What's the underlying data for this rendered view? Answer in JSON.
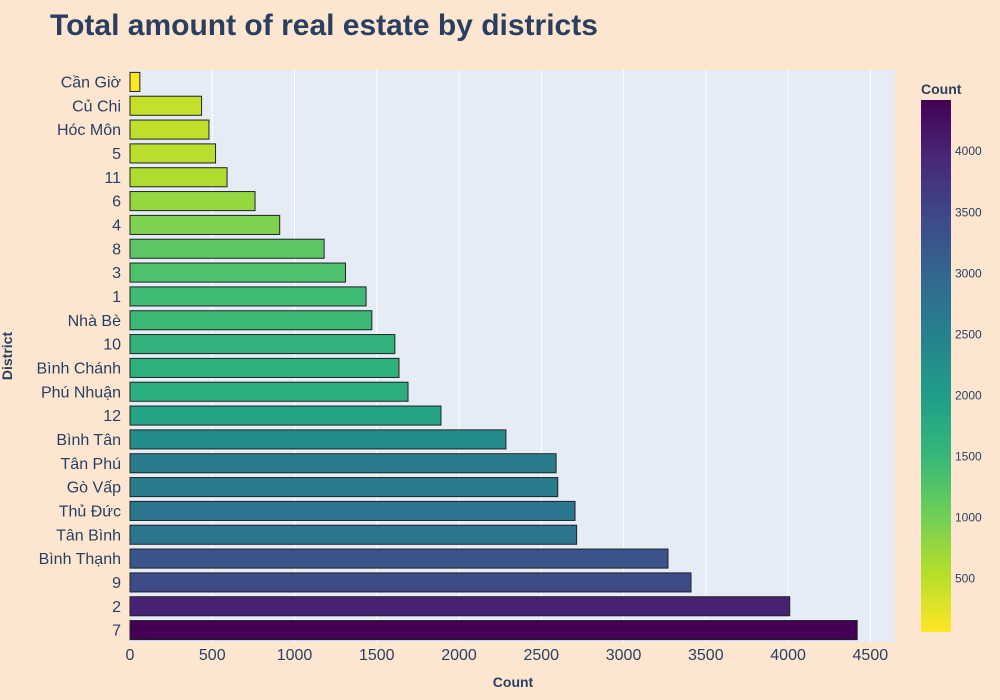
{
  "chart_data": {
    "type": "bar",
    "orientation": "horizontal",
    "title": "Total amount of real estate by districts",
    "xlabel": "Count",
    "ylabel": "District",
    "xlim": [
      0,
      4650
    ],
    "x_ticks": [
      0,
      500,
      1000,
      1500,
      2000,
      2500,
      3000,
      3500,
      4000,
      4500
    ],
    "grid": true,
    "categories": [
      "Cần Giờ",
      "Củ Chi",
      "Hóc Môn",
      "5",
      "11",
      "6",
      "4",
      "8",
      "3",
      "1",
      "Nhà Bè",
      "10",
      "Bình Chánh",
      "Phú Nhuận",
      "12",
      "Bình Tân",
      "Tân Phú",
      "Gò Vấp",
      "Thủ Đức",
      "Tân Bình",
      "Bình Thạnh",
      "9",
      "2",
      "7"
    ],
    "values": [
      60,
      435,
      480,
      520,
      590,
      760,
      910,
      1180,
      1310,
      1435,
      1470,
      1610,
      1635,
      1690,
      1890,
      2285,
      2590,
      2600,
      2705,
      2715,
      3270,
      3410,
      4010,
      4420
    ],
    "colorbar": {
      "title": "Count",
      "min": 60,
      "max": 4420,
      "ticks": [
        500,
        1000,
        1500,
        2000,
        2500,
        3000,
        3500,
        4000
      ],
      "colorscale": "viridis-reversed"
    },
    "colors": {
      "background": "#fde6d0",
      "plot_background": "#e5ecf6",
      "text": "#2a3f5f"
    }
  }
}
